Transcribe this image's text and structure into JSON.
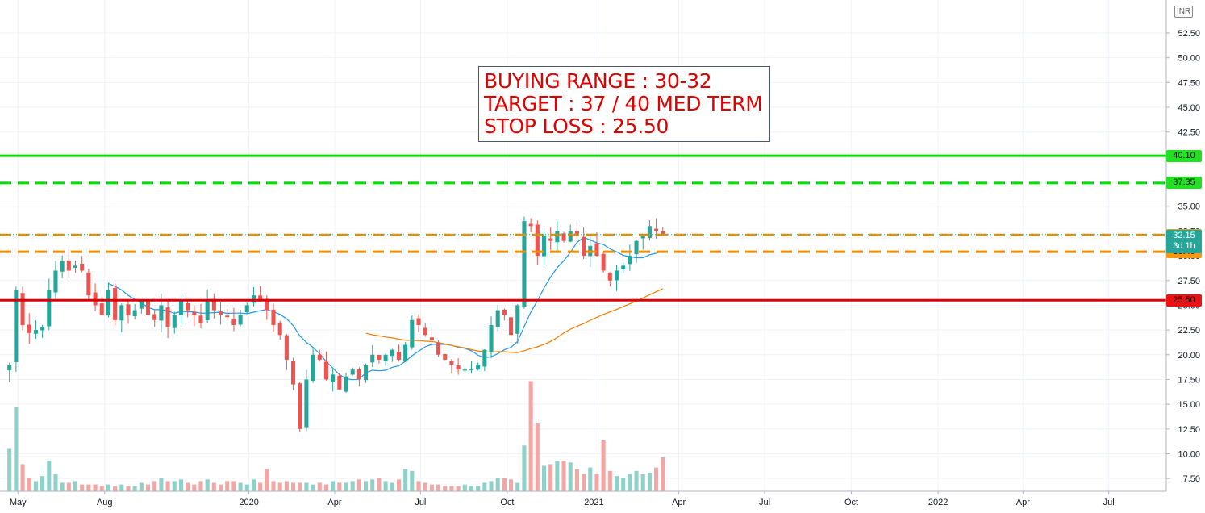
{
  "annotation": {
    "line1": "BUYING RANGE : 30-32",
    "line2": "TARGET : 37 / 40 MED TERM",
    "line3": "STOP LOSS : 25.50"
  },
  "currency": "INR",
  "colors": {
    "up": "#26a69a",
    "down": "#ef5350",
    "up_volume": "#8fd1c9",
    "down_volume": "#f4a6a4",
    "ma_short": "#2196f3",
    "ma_long": "#f57c00",
    "target_line": "#00e000",
    "buy_range": "#f08c00",
    "stop_loss": "#e00000"
  },
  "price_levels": [
    {
      "name": "target-2",
      "value": 40.1,
      "label": "40.10",
      "style": "solid",
      "color": "#00e000",
      "label_bg": "#22e022"
    },
    {
      "name": "target-1",
      "value": 37.35,
      "label": "37.35",
      "style": "dashed",
      "color": "#00e000",
      "label_bg": "#22e022"
    },
    {
      "name": "buy-high",
      "value": 32.1,
      "label": "32.10",
      "style": "dashed",
      "color": "#f08c00",
      "label_bg": "#f59a10"
    },
    {
      "name": "buy-low",
      "value": 30.4,
      "label": "30.40",
      "style": "dashed",
      "color": "#f08c00",
      "label_bg": "#f59a10"
    },
    {
      "name": "stop-loss",
      "value": 25.5,
      "label": "25.50",
      "style": "solid",
      "color": "#e00000",
      "label_bg": "#ee1111"
    }
  ],
  "last_price": {
    "label": "32.15",
    "countdown": "3d 1h",
    "value": 32.15
  },
  "chart_data": {
    "type": "candlestick",
    "title": "",
    "y_axis": {
      "ticks": [
        "52.50",
        "50.00",
        "47.50",
        "45.00",
        "42.50",
        "40.00",
        "37.50",
        "35.00",
        "32.50",
        "30.00",
        "27.50",
        "25.00",
        "22.50",
        "20.00",
        "17.50",
        "15.00",
        "12.50",
        "10.00",
        "7.50"
      ],
      "range": [
        6.0,
        55.0
      ],
      "position": "right"
    },
    "x_axis": {
      "ticks": [
        "May",
        "Aug",
        "2020",
        "Apr",
        "Jul",
        "Oct",
        "2021",
        "Apr",
        "Jul",
        "Oct",
        "2022",
        "Apr",
        "Jul"
      ],
      "tick_dates": [
        "2019-05",
        "2019-08",
        "2020-01",
        "2020-04",
        "2020-07",
        "2020-10",
        "2021-01",
        "2021-04",
        "2021-07",
        "2021-10",
        "2022-01",
        "2022-04",
        "2022-07"
      ],
      "range_start": "2019-04-12",
      "range_end": "2022-08-31"
    },
    "candle_period": "1 week",
    "series": [
      {
        "name": "ohlc",
        "start": "2019-04-22",
        "closes": [
          19.0,
          26.5,
          23.0,
          22.2,
          22.5,
          22.8,
          26.5,
          28.5,
          29.5,
          28.5,
          29.0,
          28.5,
          26.0,
          25.0,
          24.0,
          26.5,
          23.5,
          25.0,
          24.0,
          24.5,
          25.5,
          24.0,
          23.5,
          25.0,
          22.8,
          24.0,
          25.5,
          24.5,
          24.0,
          23.2,
          25.5,
          24.5,
          24.0,
          23.8,
          23.0,
          24.0,
          25.0,
          26.0,
          25.5,
          24.5,
          23.0,
          22.0,
          19.5,
          17.0,
          12.5,
          17.5,
          20.0,
          19.5,
          17.5,
          18.0,
          16.5,
          17.8,
          18.5,
          17.5,
          19.0,
          20.0,
          19.5,
          20.0,
          20.5,
          19.5,
          21.0,
          23.5,
          23.0,
          22.0,
          21.5,
          20.0,
          19.5,
          19.0,
          18.5,
          18.5,
          18.5,
          19.0,
          20.5,
          23.0,
          24.5,
          24.0,
          22.0,
          25.0,
          33.5,
          33.0,
          30.0,
          32.0,
          31.5,
          32.5,
          31.5,
          32.5,
          32.0,
          30.0,
          31.0,
          30.0,
          28.5,
          27.5,
          28.5,
          29.0,
          30.0,
          31.5,
          32.0,
          33.0,
          32.5,
          32.15
        ]
      },
      {
        "name": "ma_short",
        "start": "2019-08-05"
      },
      {
        "name": "ma_long",
        "start": "2020-05-04"
      },
      {
        "name": "volume",
        "values": [
          2.5,
          5.0,
          1.6,
          0.8,
          0.6,
          0.9,
          1.8,
          1.0,
          0.5,
          0.5,
          0.6,
          0.4,
          0.4,
          0.4,
          0.3,
          0.4,
          0.3,
          0.4,
          0.3,
          0.3,
          0.5,
          0.4,
          0.6,
          0.8,
          0.6,
          0.6,
          0.7,
          0.5,
          0.4,
          0.6,
          0.7,
          0.5,
          0.4,
          0.6,
          0.6,
          0.5,
          0.4,
          0.7,
          0.5,
          1.3,
          0.6,
          0.5,
          0.6,
          0.5,
          0.5,
          0.5,
          0.4,
          0.5,
          0.4,
          0.6,
          0.5,
          0.5,
          0.6,
          0.7,
          0.6,
          0.7,
          0.8,
          0.6,
          0.5,
          0.7,
          1.3,
          1.2,
          0.6,
          0.5,
          0.4,
          0.4,
          0.3,
          0.3,
          0.3,
          0.4,
          0.3,
          0.3,
          0.5,
          0.6,
          0.8,
          0.8,
          0.7,
          0.5,
          2.7,
          6.5,
          4.0,
          1.5,
          1.6,
          1.8,
          1.8,
          1.7,
          1.3,
          1.0,
          1.4,
          1.0,
          3.0,
          1.2,
          0.9,
          0.8,
          1.0,
          1.2,
          1.0,
          1.1,
          1.4,
          2.0
        ]
      }
    ]
  }
}
